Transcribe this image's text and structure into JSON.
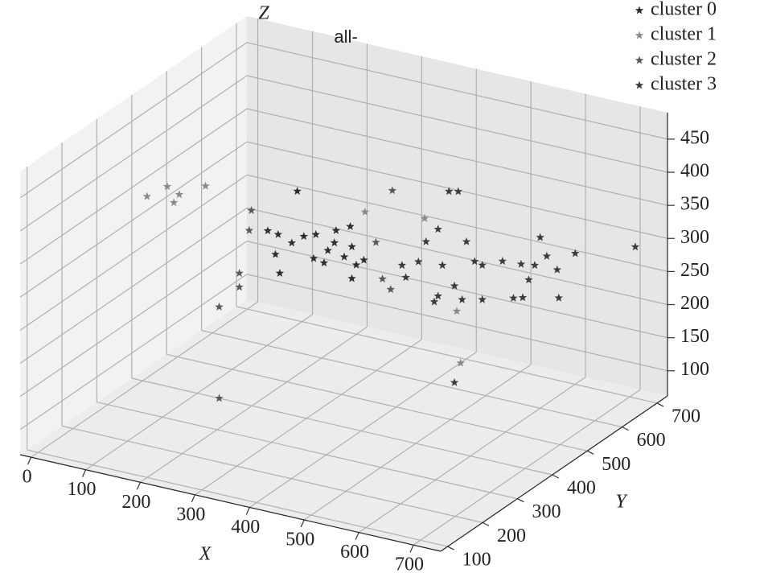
{
  "chart_data": {
    "type": "scatter3d",
    "title": "all-",
    "xlabel": "X",
    "ylabel": "Y",
    "zlabel": "Z",
    "xlim": [
      -20,
      750
    ],
    "ylim": [
      80,
      730
    ],
    "zlim": [
      62,
      490
    ],
    "xticks": [
      0,
      100,
      200,
      300,
      400,
      500,
      600,
      700
    ],
    "yticks": [
      100,
      200,
      300,
      400,
      500,
      600,
      700
    ],
    "zticks": [
      100,
      150,
      200,
      250,
      300,
      350,
      400,
      450
    ],
    "grid": true,
    "legend": "upper right",
    "marker": "star",
    "series": [
      {
        "name": "cluster 0",
        "color": "#2e2e2e",
        "x": [
          283,
          229,
          243,
          251,
          273,
          295,
          313,
          332,
          351,
          380,
          383,
          391,
          383,
          317,
          248,
          354,
          339,
          369,
          405
        ],
        "y": [
          400,
          400,
          400,
          400,
          400,
          400,
          400,
          400,
          400,
          400,
          400,
          400,
          400,
          400,
          400,
          400,
          400,
          400,
          400
        ],
        "z": [
          402,
          332,
          299,
          272,
          322,
          336,
          306,
          303,
          337,
          367,
          337,
          311,
          289,
          343,
          330,
          356,
          323,
          319,
          321
        ]
      },
      {
        "name": "cluster 1",
        "color": "#8a8a8a",
        "x": [
          8,
          45,
          67,
          115,
          57,
          575,
          582,
          516,
          407
        ],
        "y": [
          400,
          400,
          400,
          400,
          400,
          400,
          400,
          400,
          400
        ],
        "z": [
          342,
          364,
          356,
          378,
          342,
          276,
          199,
          405,
          394
        ]
      },
      {
        "name": "cluster 2",
        "color": "#5a5a5a",
        "x": [
          199,
          195,
          177,
          177,
          140,
          140,
          427,
          457,
          439,
          454
        ],
        "y": [
          400,
          400,
          400,
          400,
          400,
          400,
          400,
          400,
          400,
          400
        ],
        "z": [
          357,
          326,
          258,
          237,
          200,
          62,
          352,
          436,
          299,
          286
        ]
      },
      {
        "name": "cluster 3",
        "color": "#3c3c3c",
        "x": [
          347,
          354,
          377,
          391,
          413,
          433,
          450,
          421,
          443,
          406,
          413,
          465,
          480,
          494,
          457,
          494,
          443,
          531,
          565,
          551,
          568,
          579,
          590,
          600,
          612,
          631,
          634,
          664,
          691
        ],
        "y": [
          600,
          600,
          600,
          600,
          600,
          600,
          600,
          600,
          600,
          600,
          600,
          600,
          600,
          600,
          600,
          600,
          600,
          600,
          600,
          600,
          600,
          600,
          600,
          600,
          600,
          600,
          600,
          600,
          730
        ],
        "z": [
          230,
          213,
          241,
          274,
          297,
          358,
          361,
          244,
          217,
          186,
          196,
          288,
          261,
          258,
          199,
          206,
          71,
          271,
          273,
          219,
          223,
          252,
          276,
          320,
          294,
          277,
          235,
          308,
          276
        ]
      }
    ]
  }
}
